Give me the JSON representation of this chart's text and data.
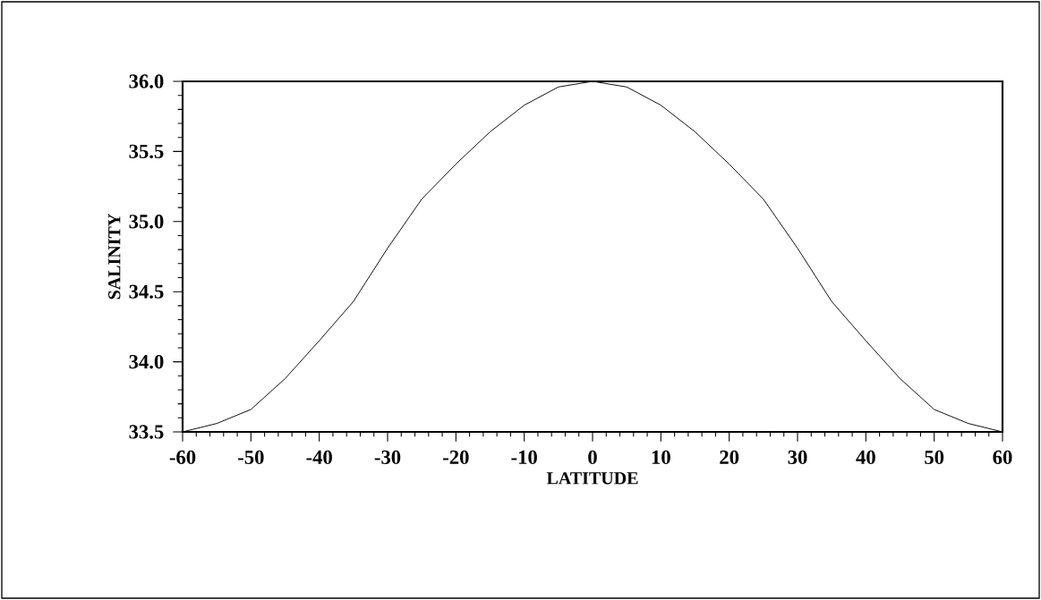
{
  "chart_data": {
    "type": "line",
    "xlabel": "LATITUDE",
    "ylabel": "SALINITY",
    "x": [
      -60,
      -55,
      -50,
      -45,
      -40,
      -35,
      -30,
      -25,
      -20,
      -15,
      -10,
      -5,
      0,
      5,
      10,
      15,
      20,
      25,
      30,
      35,
      40,
      45,
      50,
      55,
      60
    ],
    "values": [
      33.5,
      33.56,
      33.66,
      33.88,
      34.15,
      34.43,
      34.81,
      35.16,
      35.41,
      35.64,
      35.83,
      35.96,
      36.0,
      35.96,
      35.83,
      35.64,
      35.41,
      35.16,
      34.81,
      34.43,
      34.15,
      33.88,
      33.66,
      33.56,
      33.5
    ],
    "color": "#000000",
    "xlim": [
      -60,
      60
    ],
    "ylim": [
      33.5,
      36.0
    ],
    "xticks": [
      -60,
      -50,
      -40,
      -30,
      -20,
      -10,
      0,
      10,
      20,
      30,
      40,
      50,
      60
    ],
    "yticks": [
      {
        "value": 33.5,
        "label": "33.5"
      },
      {
        "value": 34.0,
        "label": "34.0"
      },
      {
        "value": 34.5,
        "label": "34.5"
      },
      {
        "value": 35.0,
        "label": "35.0"
      },
      {
        "value": 35.5,
        "label": "35.5"
      },
      {
        "value": 36.0,
        "label": "36.0"
      }
    ]
  }
}
